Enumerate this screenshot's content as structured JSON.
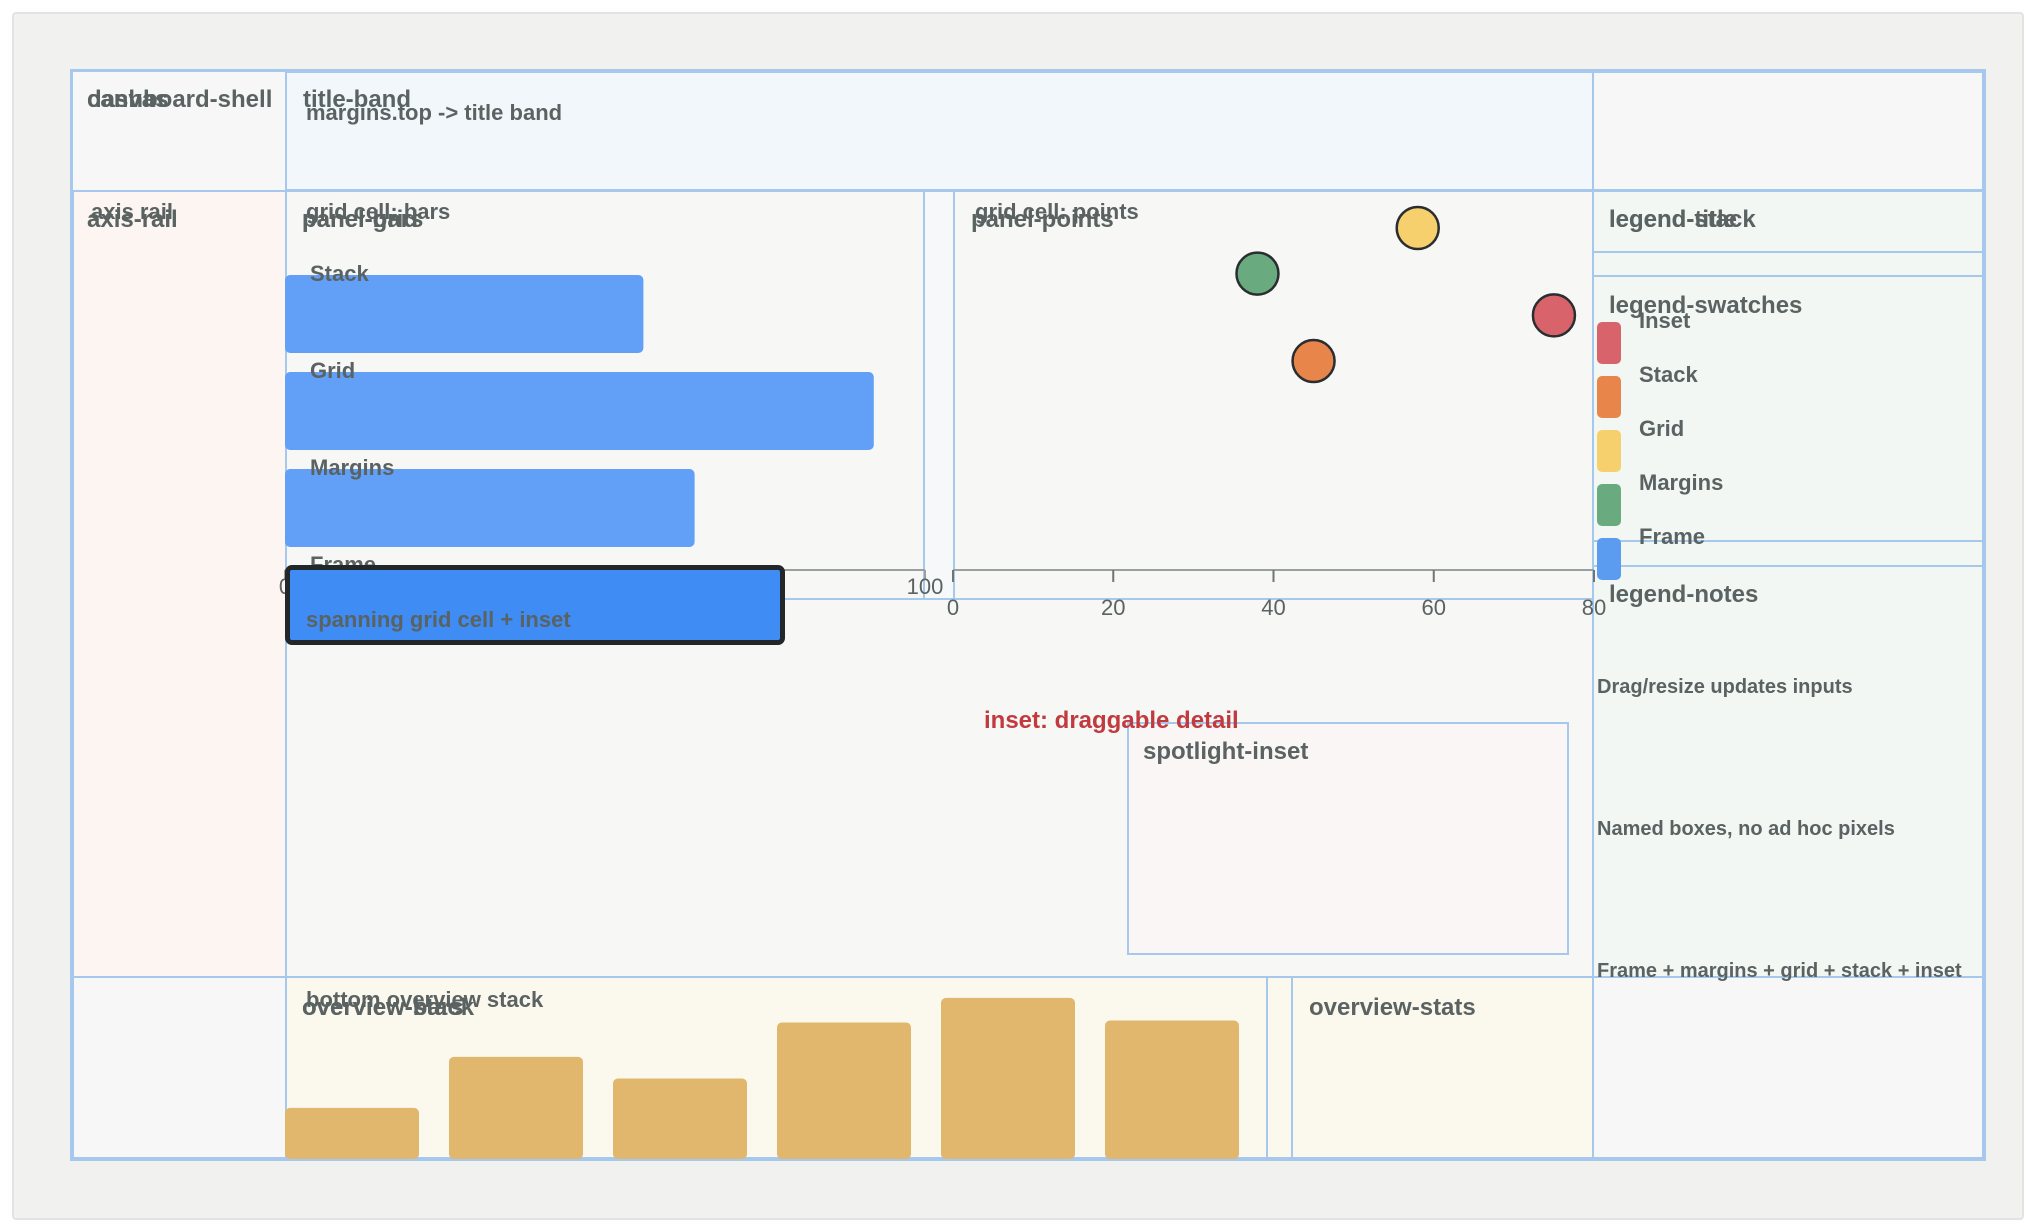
{
  "labels": {
    "canvas": "canvas",
    "dashboard_shell": "dashboard-shell",
    "title_band": "title-band",
    "title_band_note": "margins.top -> title band",
    "axis_rail_small": "axis rail",
    "axis_rail": "axis-rail",
    "grid_cell_bars": "grid cell: bars",
    "panel_grid": "panel-grid",
    "panel_bars": "panel-bars",
    "grid_cell_points": "grid cell: points",
    "panel_points": "panel-points",
    "legend_title": "legend-title",
    "legend_stack": "legend-stack",
    "legend_swatches": "legend-swatches",
    "legend_notes": "legend-notes",
    "spanning": "spanning grid cell + inset",
    "inset_caption": "inset: draggable detail",
    "spotlight_inset": "spotlight-inset",
    "bottom_overview_stack": "bottom overview stack",
    "overview_bars": "overview-bars",
    "overview_stack": "overview-stack",
    "overview_stats": "overview-stats"
  },
  "legend": {
    "items": [
      {
        "label": "Inset",
        "color": "#d9636a"
      },
      {
        "label": "Stack",
        "color": "#e8854a"
      },
      {
        "label": "Grid",
        "color": "#f6d06c"
      },
      {
        "label": "Margins",
        "color": "#69ab7f"
      },
      {
        "label": "Frame",
        "color": "#5b9bf0"
      }
    ]
  },
  "notes": [
    "Drag/resize updates inputs",
    "Named boxes, no ad hoc pixels",
    "Frame + margins + grid + stack + inset"
  ],
  "chart_data": [
    {
      "type": "bar",
      "orientation": "horizontal",
      "categories": [
        "Stack",
        "Grid",
        "Margins",
        "Frame"
      ],
      "values": [
        56,
        92,
        64,
        78
      ],
      "xlim": [
        0,
        100
      ],
      "x_ticks": [
        "0",
        "100"
      ],
      "color": "#62a0f8",
      "highlight_color": "#3f8cf4"
    },
    {
      "type": "scatter",
      "xlim": [
        0,
        80
      ],
      "x_ticks": [
        "0",
        "20",
        "40",
        "60",
        "80"
      ],
      "points": [
        {
          "x": 38,
          "y": 78,
          "series": "Margins"
        },
        {
          "x": 58,
          "y": 90,
          "series": "Grid"
        },
        {
          "x": 75,
          "y": 67,
          "series": "Inset"
        },
        {
          "x": 45,
          "y": 55,
          "series": "Stack"
        }
      ],
      "ylim": [
        0,
        100
      ]
    },
    {
      "type": "bar",
      "orientation": "vertical",
      "values": [
        5.2,
        10.4,
        8.2,
        13.9,
        16.4,
        14.1
      ],
      "ylim": [
        0,
        17
      ],
      "color": "#e0b76d"
    }
  ]
}
